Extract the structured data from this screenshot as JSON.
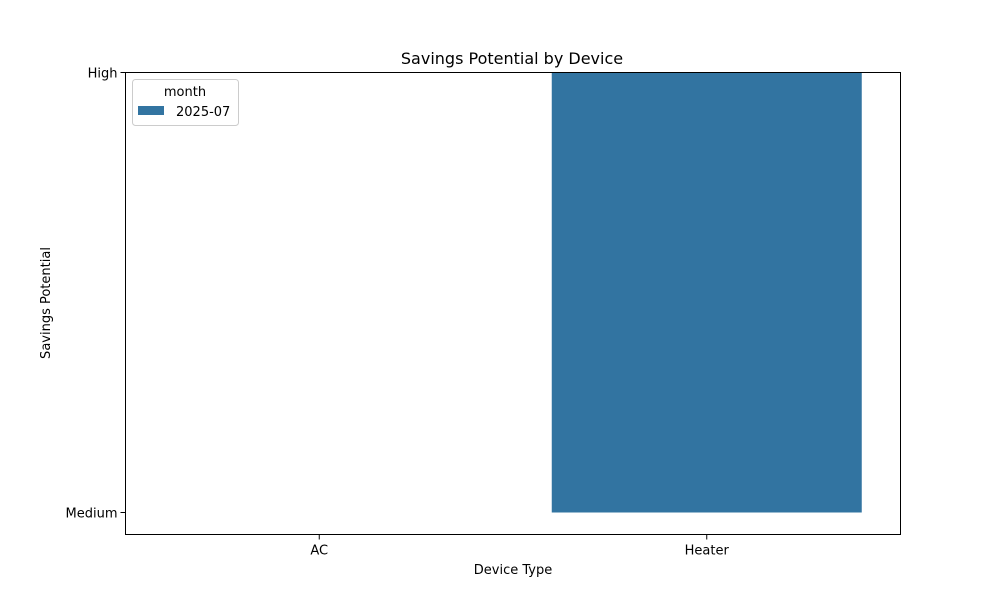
{
  "chart_data": {
    "type": "bar",
    "title": "Savings Potential by Device",
    "xlabel": "Device Type",
    "ylabel": "Savings Potential",
    "categories": [
      "AC",
      "Heater"
    ],
    "y_categories": [
      "Medium",
      "High"
    ],
    "series": [
      {
        "name": "2025-07",
        "color": "#3274a1",
        "values": [
          "Medium",
          "High"
        ]
      }
    ],
    "legend": {
      "title": "month",
      "placement": "top-left"
    },
    "grid": false
  }
}
